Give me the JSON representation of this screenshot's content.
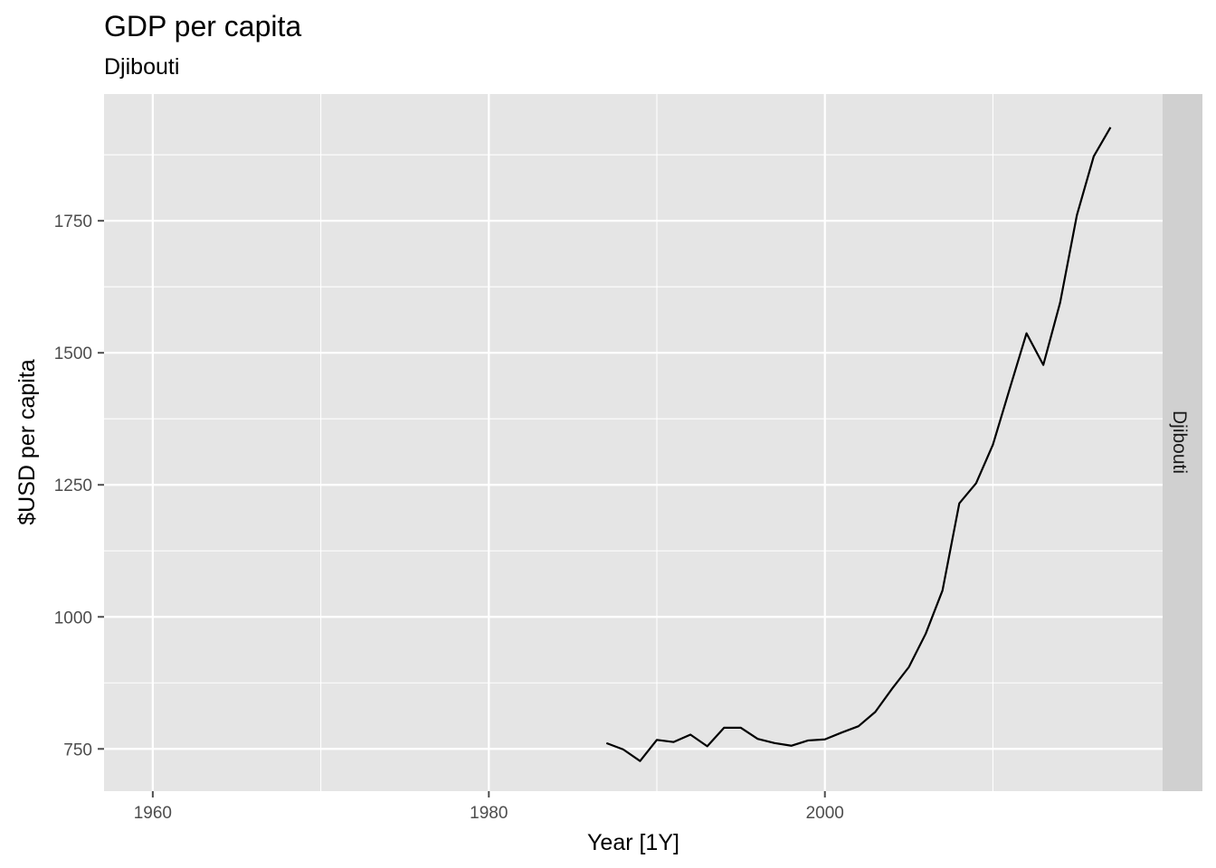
{
  "chart_data": {
    "type": "line",
    "title": "GDP per capita",
    "subtitle": "Djibouti",
    "xlabel": "Year [1Y]",
    "ylabel": "$USD per capita",
    "facet_label": "Djibouti",
    "xlim": [
      1957.1,
      2020.1
    ],
    "ylim": [
      670,
      1990
    ],
    "x_ticks": [
      1960,
      1980,
      2000
    ],
    "x_tick_labels": [
      "1960",
      "1980",
      "2000"
    ],
    "y_ticks": [
      750,
      1000,
      1250,
      1500,
      1750
    ],
    "y_tick_labels": [
      "750",
      "1000",
      "1250",
      "1500",
      "1750"
    ],
    "grid": true,
    "colors": {
      "panel": "#e5e5e5",
      "grid": "#ffffff",
      "strip": "#d0d0d0",
      "line": "#000000",
      "tick": "#4d4d4d"
    },
    "series": [
      {
        "x": [
          1987,
          1988,
          1989,
          1990,
          1991,
          1992,
          1993,
          1994,
          1995,
          1996,
          1997,
          1998,
          1999,
          2000,
          2001,
          2002,
          2003,
          2004,
          2005,
          2006,
          2007,
          2008,
          2009,
          2010,
          2011,
          2012,
          2013,
          2014,
          2015,
          2016,
          2017
        ],
        "values": [
          761,
          749,
          727,
          767,
          763,
          777,
          755,
          790,
          790,
          769,
          761,
          756,
          766,
          768,
          781,
          793,
          820,
          864,
          905,
          968,
          1050,
          1215,
          1253,
          1326,
          1432,
          1537,
          1477,
          1595,
          1761,
          1872,
          1927
        ]
      }
    ]
  }
}
